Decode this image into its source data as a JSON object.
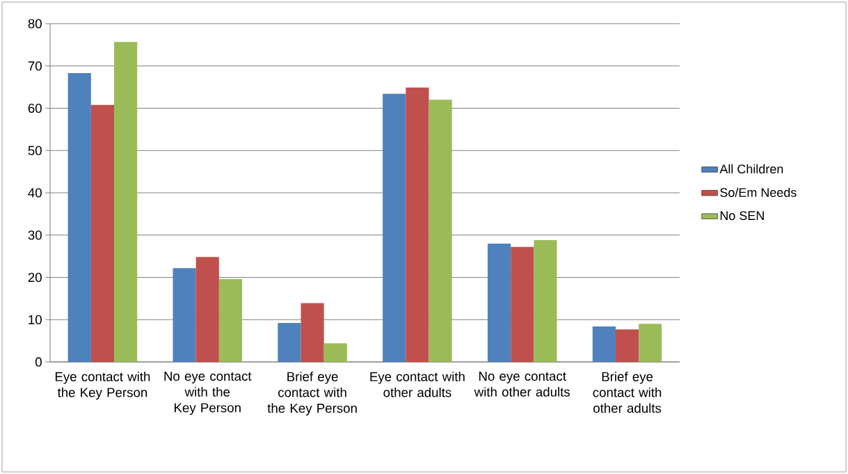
{
  "chart_data": {
    "type": "bar",
    "categories": [
      "Eye contact with the Key Person",
      "No eye contact with the Key Person",
      "Brief eye contact with the Key Person",
      "Eye contact with other adults",
      "No eye contact with other adults",
      "Brief eye contact with other adults"
    ],
    "series": [
      {
        "name": "All Children",
        "color": "#4f81bd",
        "values": [
          68.3,
          22.2,
          9.2,
          63.4,
          28.0,
          8.4
        ]
      },
      {
        "name": "So/Em Needs",
        "color": "#c0504d",
        "values": [
          60.8,
          24.8,
          13.9,
          64.9,
          27.2,
          7.7
        ]
      },
      {
        "name": "No SEN",
        "color": "#9bbb59",
        "values": [
          75.7,
          19.6,
          4.4,
          62.0,
          28.8,
          9.0
        ]
      }
    ],
    "ylim": [
      0,
      80
    ],
    "yticks": [
      0,
      10,
      20,
      30,
      40,
      50,
      60,
      70,
      80
    ],
    "grid": "y",
    "legend": "right"
  }
}
